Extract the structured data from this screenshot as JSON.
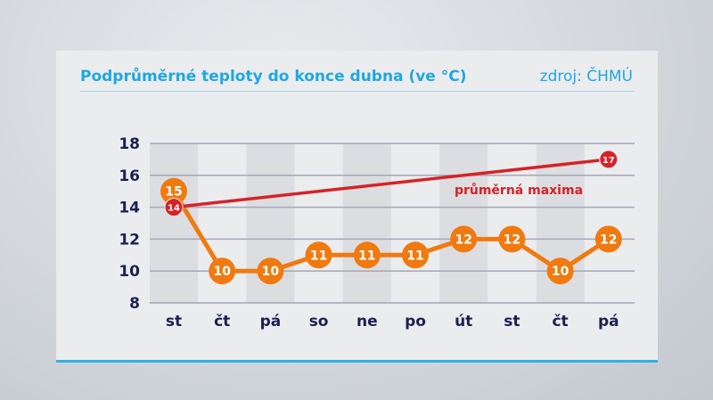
{
  "title": "Podprůměrné teploty do konce dubna (ve °C)",
  "source": "zdroj: ČHMÚ",
  "chart_data": {
    "type": "line",
    "title": "Podprůměrné teploty do konce dubna (ve °C)",
    "categories": [
      "st",
      "čt",
      "pá",
      "so",
      "ne",
      "po",
      "út",
      "st",
      "čt",
      "pá"
    ],
    "yticks": [
      8,
      10,
      12,
      14,
      16,
      18
    ],
    "ylim": [
      8,
      18
    ],
    "grid": true,
    "series": [
      {
        "values": [
          15,
          10,
          10,
          11,
          11,
          11,
          12,
          12,
          10,
          12
        ],
        "color": "#f07a10"
      },
      {
        "name": "průměrná maxima",
        "values": [
          14,
          null,
          null,
          null,
          null,
          null,
          null,
          null,
          null,
          17
        ],
        "color": "#d42327"
      }
    ]
  }
}
